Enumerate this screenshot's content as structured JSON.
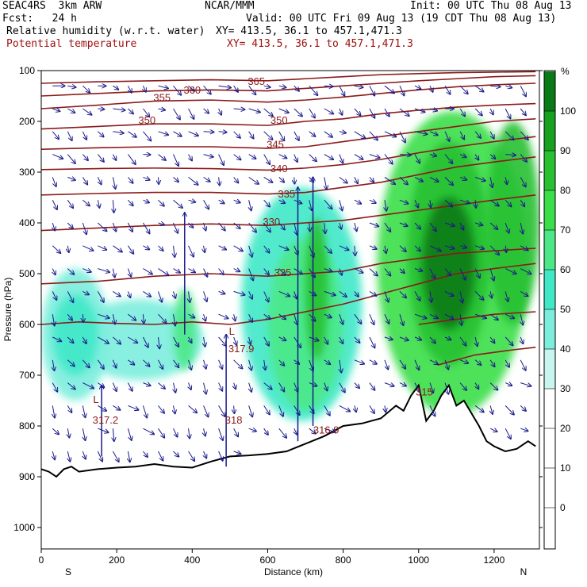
{
  "header": {
    "model": "SEAC4RS  3km ARW",
    "org": "NCAR/MMM",
    "init": "Init: 00 UTC Thu 08 Aug 13",
    "fcst": "Fcst:   24 h",
    "valid": "Valid: 00 UTC Fri 09 Aug 13 (19 CDT Thu 08 Aug 13)",
    "field1": "Relative humidity (w.r.t. water)",
    "field1_xy": "XY= 413.5, 36.1 to 457.1,471.3",
    "field2": "Potential temperature",
    "field2_xy": "XY= 413.5, 36.1 to 457.1,471.3"
  },
  "chart_data": {
    "type": "cross-section",
    "xlabel": "Distance (km)",
    "ylabel": "Pressure (hPa)",
    "xlim": [
      0,
      1320
    ],
    "ylim": [
      1050,
      100
    ],
    "x_ticks": [
      0,
      200,
      400,
      600,
      800,
      1000,
      1200
    ],
    "y_ticks": [
      100,
      200,
      300,
      400,
      500,
      600,
      700,
      800,
      900,
      1000
    ],
    "endpoints": {
      "left": "S",
      "right": "N"
    },
    "colorbar": {
      "unit": "%",
      "ticks": [
        0,
        10,
        20,
        30,
        40,
        50,
        60,
        70,
        80,
        90,
        100
      ],
      "levels": [
        {
          "from": 30,
          "to": 40,
          "color": "#c8f5ee"
        },
        {
          "from": 40,
          "to": 50,
          "color": "#7deedd"
        },
        {
          "from": 50,
          "to": 60,
          "color": "#40e8c8"
        },
        {
          "from": 60,
          "to": 70,
          "color": "#4ce888"
        },
        {
          "from": 70,
          "to": 80,
          "color": "#3ade4a"
        },
        {
          "from": 80,
          "to": 90,
          "color": "#28c030"
        },
        {
          "from": 90,
          "to": 100,
          "color": "#18a020"
        },
        {
          "from": 100,
          "to": 110,
          "color": "#0a7a16"
        }
      ]
    },
    "isentropes": [
      {
        "label": "325",
        "label_x": 640,
        "label_p": 505,
        "points": [
          [
            0,
            520
          ],
          [
            150,
            515
          ],
          [
            300,
            505
          ],
          [
            450,
            500
          ],
          [
            600,
            505
          ],
          [
            700,
            500
          ],
          [
            800,
            495
          ],
          [
            900,
            480
          ],
          [
            1000,
            470
          ],
          [
            1100,
            460
          ],
          [
            1200,
            455
          ],
          [
            1310,
            450
          ]
        ]
      },
      {
        "label": "330",
        "label_x": 610,
        "label_p": 405,
        "points": [
          [
            0,
            415
          ],
          [
            150,
            410
          ],
          [
            300,
            405
          ],
          [
            450,
            402
          ],
          [
            600,
            405
          ],
          [
            700,
            400
          ],
          [
            800,
            395
          ],
          [
            900,
            385
          ],
          [
            1000,
            375
          ],
          [
            1100,
            365
          ],
          [
            1200,
            355
          ],
          [
            1310,
            345
          ]
        ]
      },
      {
        "label": "335",
        "label_x": 650,
        "label_p": 350,
        "points": [
          [
            0,
            345
          ],
          [
            150,
            342
          ],
          [
            300,
            340
          ],
          [
            450,
            340
          ],
          [
            600,
            343
          ],
          [
            700,
            340
          ],
          [
            800,
            330
          ],
          [
            900,
            320
          ],
          [
            1000,
            305
          ],
          [
            1100,
            290
          ],
          [
            1200,
            280
          ],
          [
            1310,
            270
          ]
        ]
      },
      {
        "label": "340",
        "label_x": 630,
        "label_p": 300,
        "points": [
          [
            0,
            295
          ],
          [
            150,
            293
          ],
          [
            300,
            292
          ],
          [
            450,
            293
          ],
          [
            600,
            296
          ],
          [
            700,
            292
          ],
          [
            800,
            285
          ],
          [
            900,
            275
          ],
          [
            1000,
            262
          ],
          [
            1100,
            250
          ],
          [
            1200,
            240
          ],
          [
            1310,
            230
          ]
        ]
      },
      {
        "label": "345",
        "label_x": 620,
        "label_p": 252,
        "points": [
          [
            0,
            255
          ],
          [
            150,
            252
          ],
          [
            300,
            250
          ],
          [
            450,
            250
          ],
          [
            600,
            253
          ],
          [
            700,
            250
          ],
          [
            800,
            240
          ],
          [
            900,
            230
          ],
          [
            1000,
            220
          ],
          [
            1100,
            210
          ],
          [
            1200,
            200
          ],
          [
            1310,
            195
          ]
        ]
      },
      {
        "label": "350",
        "label_x": 280,
        "label_p": 205,
        "points": [
          [
            0,
            215
          ],
          [
            150,
            210
          ],
          [
            300,
            205
          ],
          [
            450,
            205
          ],
          [
            600,
            208
          ],
          [
            700,
            200
          ],
          [
            800,
            195
          ],
          [
            900,
            185
          ],
          [
            1000,
            178
          ],
          [
            1100,
            172
          ],
          [
            1200,
            168
          ],
          [
            1310,
            165
          ]
        ]
      },
      {
        "label": "350",
        "label_x": 630,
        "label_p": 205,
        "points": []
      },
      {
        "label": "355",
        "label_x": 320,
        "label_p": 160,
        "points": [
          [
            0,
            175
          ],
          [
            150,
            168
          ],
          [
            300,
            160
          ],
          [
            450,
            158
          ],
          [
            600,
            162
          ],
          [
            700,
            158
          ],
          [
            800,
            152
          ],
          [
            900,
            145
          ],
          [
            1000,
            138
          ],
          [
            1100,
            132
          ],
          [
            1200,
            128
          ],
          [
            1310,
            125
          ]
        ]
      },
      {
        "label": "360",
        "label_x": 400,
        "label_p": 145,
        "points": [
          [
            0,
            150
          ],
          [
            150,
            145
          ],
          [
            300,
            140
          ],
          [
            450,
            138
          ],
          [
            600,
            140
          ],
          [
            700,
            135
          ],
          [
            800,
            130
          ],
          [
            900,
            125
          ],
          [
            1000,
            120
          ],
          [
            1100,
            116
          ],
          [
            1200,
            112
          ],
          [
            1310,
            110
          ]
        ]
      },
      {
        "label": "365",
        "label_x": 570,
        "label_p": 128,
        "points": [
          [
            0,
            125
          ],
          [
            150,
            122
          ],
          [
            300,
            120
          ],
          [
            450,
            118
          ],
          [
            600,
            120
          ],
          [
            700,
            116
          ],
          [
            800,
            112
          ],
          [
            900,
            108
          ],
          [
            1000,
            106
          ],
          [
            1100,
            104
          ],
          [
            1200,
            103
          ],
          [
            1310,
            102
          ]
        ]
      },
      {
        "label": "",
        "points": [
          [
            0,
            600
          ],
          [
            100,
            595
          ],
          [
            200,
            598
          ],
          [
            300,
            600
          ],
          [
            400,
            595
          ],
          [
            500,
            600
          ],
          [
            600,
            590
          ],
          [
            700,
            575
          ],
          [
            800,
            560
          ],
          [
            900,
            540
          ],
          [
            1000,
            520
          ],
          [
            1100,
            500
          ],
          [
            1200,
            490
          ],
          [
            1310,
            480
          ]
        ]
      },
      {
        "label": "",
        "points": [
          [
            1000,
            600
          ],
          [
            1100,
            590
          ],
          [
            1200,
            580
          ],
          [
            1310,
            575
          ]
        ]
      },
      {
        "label": "",
        "points": [
          [
            1050,
            680
          ],
          [
            1150,
            660
          ],
          [
            1250,
            650
          ],
          [
            1310,
            645
          ]
        ]
      }
    ],
    "lows": [
      {
        "text": "L",
        "x": 145,
        "p": 755
      },
      {
        "text": "317.2",
        "x": 170,
        "p": 795
      },
      {
        "text": "L",
        "x": 505,
        "p": 620
      },
      {
        "text": "317.9",
        "x": 530,
        "p": 655
      },
      {
        "text": "318",
        "x": 510,
        "p": 795
      },
      {
        "text": "316.9",
        "x": 755,
        "p": 815
      },
      {
        "text": "315",
        "x": 1015,
        "p": 740
      }
    ],
    "terrain": [
      [
        0,
        885
      ],
      [
        20,
        890
      ],
      [
        40,
        900
      ],
      [
        60,
        885
      ],
      [
        80,
        880
      ],
      [
        100,
        890
      ],
      [
        150,
        885
      ],
      [
        200,
        882
      ],
      [
        250,
        880
      ],
      [
        300,
        875
      ],
      [
        350,
        880
      ],
      [
        400,
        882
      ],
      [
        450,
        870
      ],
      [
        500,
        860
      ],
      [
        550,
        858
      ],
      [
        600,
        855
      ],
      [
        650,
        850
      ],
      [
        700,
        835
      ],
      [
        750,
        820
      ],
      [
        800,
        800
      ],
      [
        850,
        795
      ],
      [
        900,
        785
      ],
      [
        940,
        760
      ],
      [
        960,
        770
      ],
      [
        980,
        740
      ],
      [
        1000,
        720
      ],
      [
        1020,
        790
      ],
      [
        1040,
        770
      ],
      [
        1060,
        740
      ],
      [
        1080,
        720
      ],
      [
        1100,
        760
      ],
      [
        1120,
        750
      ],
      [
        1140,
        775
      ],
      [
        1160,
        800
      ],
      [
        1180,
        830
      ],
      [
        1200,
        840
      ],
      [
        1230,
        850
      ],
      [
        1260,
        845
      ],
      [
        1290,
        830
      ],
      [
        1310,
        840
      ]
    ],
    "rh_blobs": [
      {
        "x": 90,
        "p": 620,
        "rx": 90,
        "rp": 130,
        "rh": 45
      },
      {
        "x": 260,
        "p": 630,
        "rx": 170,
        "rp": 80,
        "rh": 45
      },
      {
        "x": 90,
        "p": 620,
        "rx": 60,
        "rp": 80,
        "rh": 55
      },
      {
        "x": 380,
        "p": 610,
        "rx": 30,
        "rp": 80,
        "rh": 60
      },
      {
        "x": 690,
        "p": 560,
        "rx": 160,
        "rp": 230,
        "rh": 55
      },
      {
        "x": 700,
        "p": 600,
        "rx": 100,
        "rp": 170,
        "rh": 65
      },
      {
        "x": 730,
        "p": 530,
        "rx": 30,
        "rp": 140,
        "rh": 85
      },
      {
        "x": 1090,
        "p": 480,
        "rx": 200,
        "rp": 300,
        "rh": 70
      },
      {
        "x": 1080,
        "p": 460,
        "rx": 110,
        "rp": 220,
        "rh": 85
      },
      {
        "x": 1080,
        "p": 480,
        "rx": 70,
        "rp": 130,
        "rh": 100
      },
      {
        "x": 1250,
        "p": 400,
        "rx": 70,
        "rp": 200,
        "rh": 80
      }
    ]
  }
}
